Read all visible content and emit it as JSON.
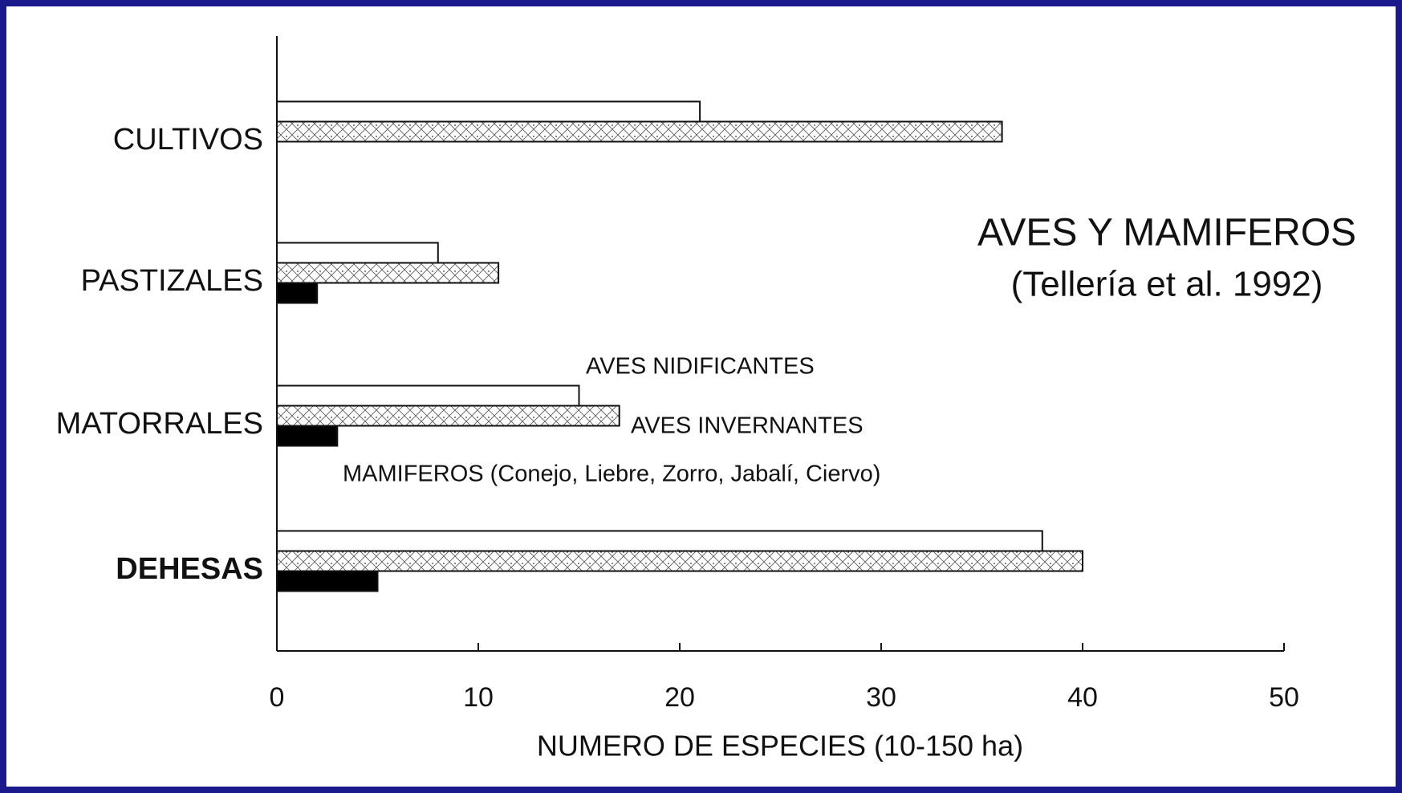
{
  "chart_data": {
    "type": "barh",
    "title": "AVES Y MAMIFEROS",
    "subtitle": "(Tellería et al. 1992)",
    "x_label": "NUMERO DE ESPECIES (10-150 ha)",
    "categories": [
      "CULTIVOS",
      "PASTIZALES",
      "MATORRALES",
      "DEHESAS"
    ],
    "series": [
      {
        "name": "AVES NIDIFICANTES",
        "color": "#ffffff",
        "values": [
          21,
          8,
          15,
          38
        ]
      },
      {
        "name": "AVES INVERNANTES",
        "color": "hatch",
        "values": [
          36,
          11,
          17,
          40
        ]
      },
      {
        "name": "MAMIFEROS (Conejo, Liebre, Zorro, Jabalí, Ciervo)",
        "color": "#000000",
        "values": [
          null,
          2,
          3,
          5
        ]
      }
    ],
    "xlim": [
      0,
      50
    ],
    "xticks": [
      0,
      10,
      20,
      30,
      40,
      50
    ]
  }
}
